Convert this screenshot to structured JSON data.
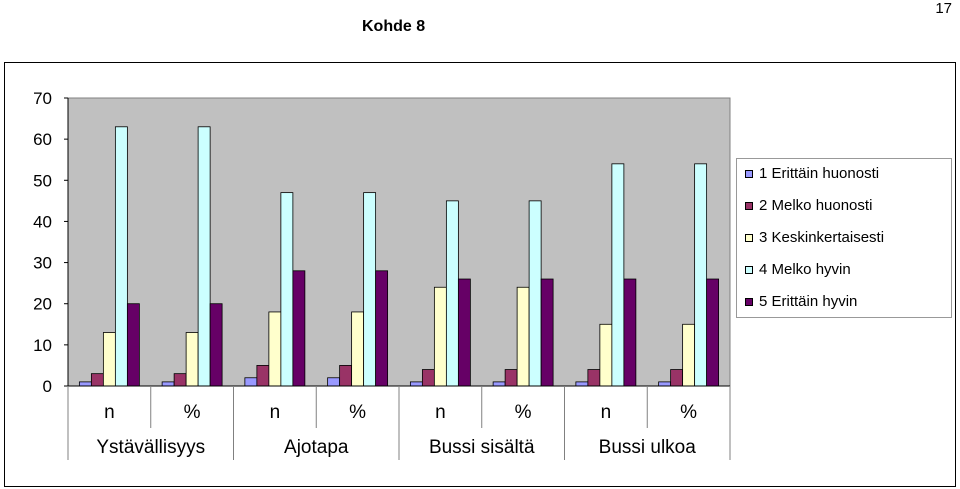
{
  "page_number": "17",
  "chart_data": {
    "type": "bar",
    "title": "Kohde 8",
    "categories": [
      "n",
      "%",
      "n",
      "%",
      "n",
      "%",
      "n",
      "%"
    ],
    "groups": [
      "Ystävällisyys",
      "Ajotapa",
      "Bussi sisältä",
      "Bussi ulkoa"
    ],
    "series": [
      {
        "name": "1 Erittäin huonosti",
        "color": "#9999ff",
        "values": [
          1,
          1,
          2,
          2,
          1,
          1,
          1,
          1
        ]
      },
      {
        "name": "2 Melko huonosti",
        "color": "#993366",
        "values": [
          3,
          3,
          5,
          5,
          4,
          4,
          4,
          4
        ]
      },
      {
        "name": "3 Keskinkertaisesti",
        "color": "#ffffcc",
        "values": [
          13,
          13,
          18,
          18,
          24,
          24,
          15,
          15
        ]
      },
      {
        "name": "4 Melko hyvin",
        "color": "#ccffff",
        "values": [
          63,
          63,
          47,
          47,
          45,
          45,
          54,
          54
        ]
      },
      {
        "name": "5 Erittäin hyvin",
        "color": "#660066",
        "values": [
          20,
          20,
          28,
          28,
          26,
          26,
          26,
          26
        ]
      }
    ],
    "ylim": [
      0,
      70
    ],
    "yticks": [
      0,
      10,
      20,
      30,
      40,
      50,
      60,
      70
    ],
    "grid": false,
    "plot_background": "#c0c0c0",
    "legend_position": "right"
  }
}
